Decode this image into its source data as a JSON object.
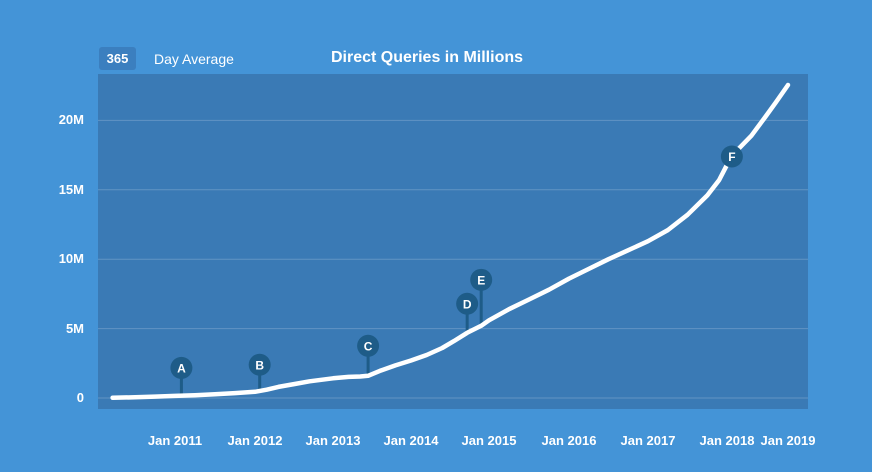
{
  "header": {
    "legend_value": "365",
    "legend_label": "Day Average",
    "title": "Direct Queries in Millions"
  },
  "colors": {
    "page_bg": "#4494d7",
    "plot_bg": "#3a7ab5",
    "grid": "rgba(255,255,255,0.20)",
    "line": "#ffffff",
    "marker": "#1e5c88",
    "marker_letter": "#ffffff",
    "legend_box_bg": "#3b7fbf",
    "text": "#ffffff"
  },
  "chart_data": {
    "type": "line",
    "title": "Direct Queries in Millions",
    "series_name": "365 Day Average",
    "unit": "millions of direct queries per day",
    "ylim": [
      0,
      23.3
    ],
    "grid": true,
    "y_ticks": [
      {
        "label": "20M",
        "value": 20
      },
      {
        "label": "15M",
        "value": 15
      },
      {
        "label": "10M",
        "value": 10
      },
      {
        "label": "5M",
        "value": 5
      },
      {
        "label": "0",
        "value": 0
      }
    ],
    "x_ticks": [
      {
        "label": "Jan 2011",
        "year": 2011
      },
      {
        "label": "Jan 2012",
        "year": 2012
      },
      {
        "label": "Jan 2013",
        "year": 2013
      },
      {
        "label": "Jan 2014",
        "year": 2014
      },
      {
        "label": "Jan 2015",
        "year": 2015
      },
      {
        "label": "Jan 2016",
        "year": 2016
      },
      {
        "label": "Jan 2017",
        "year": 2017
      },
      {
        "label": "Jan 2018",
        "year": 2018
      },
      {
        "label": "Jan 2019",
        "year": 2019
      }
    ],
    "points": [
      [
        2010.22,
        0.02
      ],
      [
        2010.5,
        0.05
      ],
      [
        2010.75,
        0.1
      ],
      [
        2011.0,
        0.15
      ],
      [
        2011.25,
        0.2
      ],
      [
        2011.5,
        0.27
      ],
      [
        2011.75,
        0.35
      ],
      [
        2012.0,
        0.45
      ],
      [
        2012.15,
        0.6
      ],
      [
        2012.3,
        0.8
      ],
      [
        2012.5,
        1.0
      ],
      [
        2012.7,
        1.2
      ],
      [
        2012.9,
        1.35
      ],
      [
        2013.0,
        1.42
      ],
      [
        2013.2,
        1.52
      ],
      [
        2013.35,
        1.55
      ],
      [
        2013.45,
        1.6
      ],
      [
        2013.6,
        1.95
      ],
      [
        2013.8,
        2.35
      ],
      [
        2014.0,
        2.7
      ],
      [
        2014.2,
        3.1
      ],
      [
        2014.4,
        3.6
      ],
      [
        2014.55,
        4.1
      ],
      [
        2014.72,
        4.7
      ],
      [
        2014.9,
        5.2
      ],
      [
        2015.0,
        5.6
      ],
      [
        2015.25,
        6.4
      ],
      [
        2015.5,
        7.1
      ],
      [
        2015.75,
        7.8
      ],
      [
        2016.0,
        8.6
      ],
      [
        2016.25,
        9.3
      ],
      [
        2016.5,
        10.0
      ],
      [
        2016.75,
        10.65
      ],
      [
        2017.0,
        11.3
      ],
      [
        2017.25,
        12.1
      ],
      [
        2017.5,
        13.2
      ],
      [
        2017.75,
        14.6
      ],
      [
        2017.9,
        15.7
      ],
      [
        2018.0,
        16.8
      ],
      [
        2018.08,
        17.4
      ],
      [
        2018.2,
        18.0
      ],
      [
        2018.4,
        18.9
      ],
      [
        2018.62,
        20.2
      ],
      [
        2018.8,
        21.3
      ],
      [
        2019.0,
        22.55
      ]
    ],
    "markers": [
      {
        "label": "A",
        "year": 2011.08,
        "value": 0.15,
        "lift": 28
      },
      {
        "label": "B",
        "year": 2012.06,
        "value": 0.45,
        "lift": 27
      },
      {
        "label": "C",
        "year": 2013.45,
        "value": 1.6,
        "lift": 30
      },
      {
        "label": "D",
        "year": 2014.72,
        "value": 4.7,
        "lift": 29
      },
      {
        "label": "E",
        "year": 2014.9,
        "value": 5.2,
        "lift": 46
      },
      {
        "label": "F",
        "year": 2018.08,
        "value": 17.4,
        "lift": 0
      }
    ]
  }
}
